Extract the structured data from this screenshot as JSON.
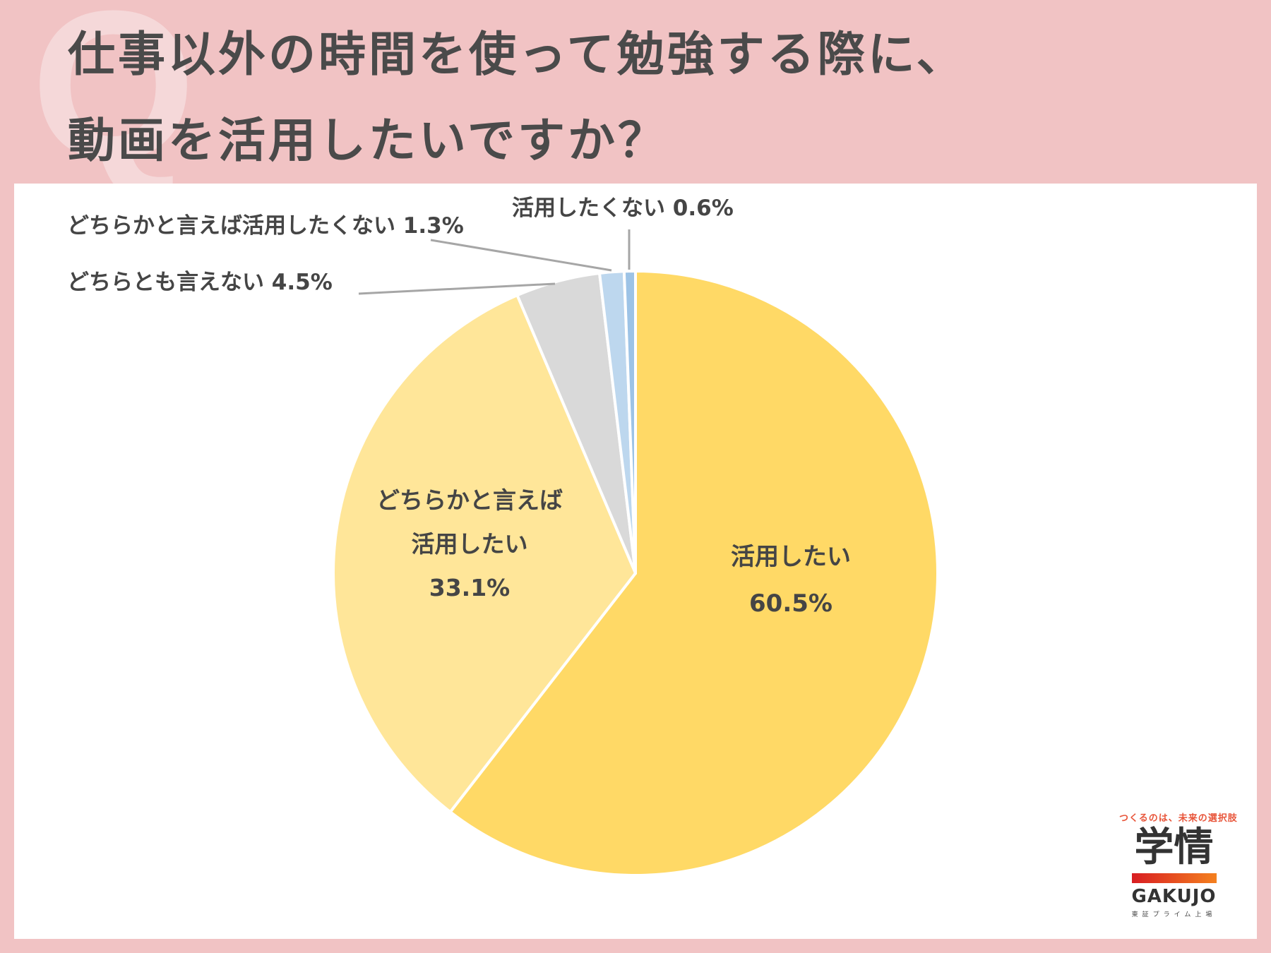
{
  "title": {
    "line1": "仕事以外の時間を使って勉強する際に、",
    "line2": "動画を活用したいですか？"
  },
  "decor": {
    "q_mark": "Q"
  },
  "chart_data": {
    "type": "pie",
    "title": "仕事以外の時間を使って勉強する際に、動画を活用したいですか？",
    "start": "12 o'clock, clockwise",
    "slices": [
      {
        "label": "活用したい",
        "value": 60.5,
        "value_label": "60.5%",
        "color": "#ffd966"
      },
      {
        "label": "どちらかと言えば活用したい",
        "label_lines": [
          "どちらかと言えば",
          "活用したい"
        ],
        "value": 33.1,
        "value_label": "33.1%",
        "color": "#ffe699"
      },
      {
        "label": "どちらとも言えない",
        "value": 4.5,
        "value_label": "4.5%",
        "color": "#d9d9d9"
      },
      {
        "label": "どちらかと言えば活用したくない",
        "value": 1.3,
        "value_label": "1.3%",
        "color": "#bdd7ee"
      },
      {
        "label": "活用したくない",
        "value": 0.6,
        "value_label": "0.6%",
        "color": "#9dc3e6"
      }
    ]
  },
  "logo": {
    "tagline": "つくるのは、未来の選択肢",
    "mark": "学情",
    "name": "GAKUJO",
    "sub": "東証プライム上場"
  }
}
